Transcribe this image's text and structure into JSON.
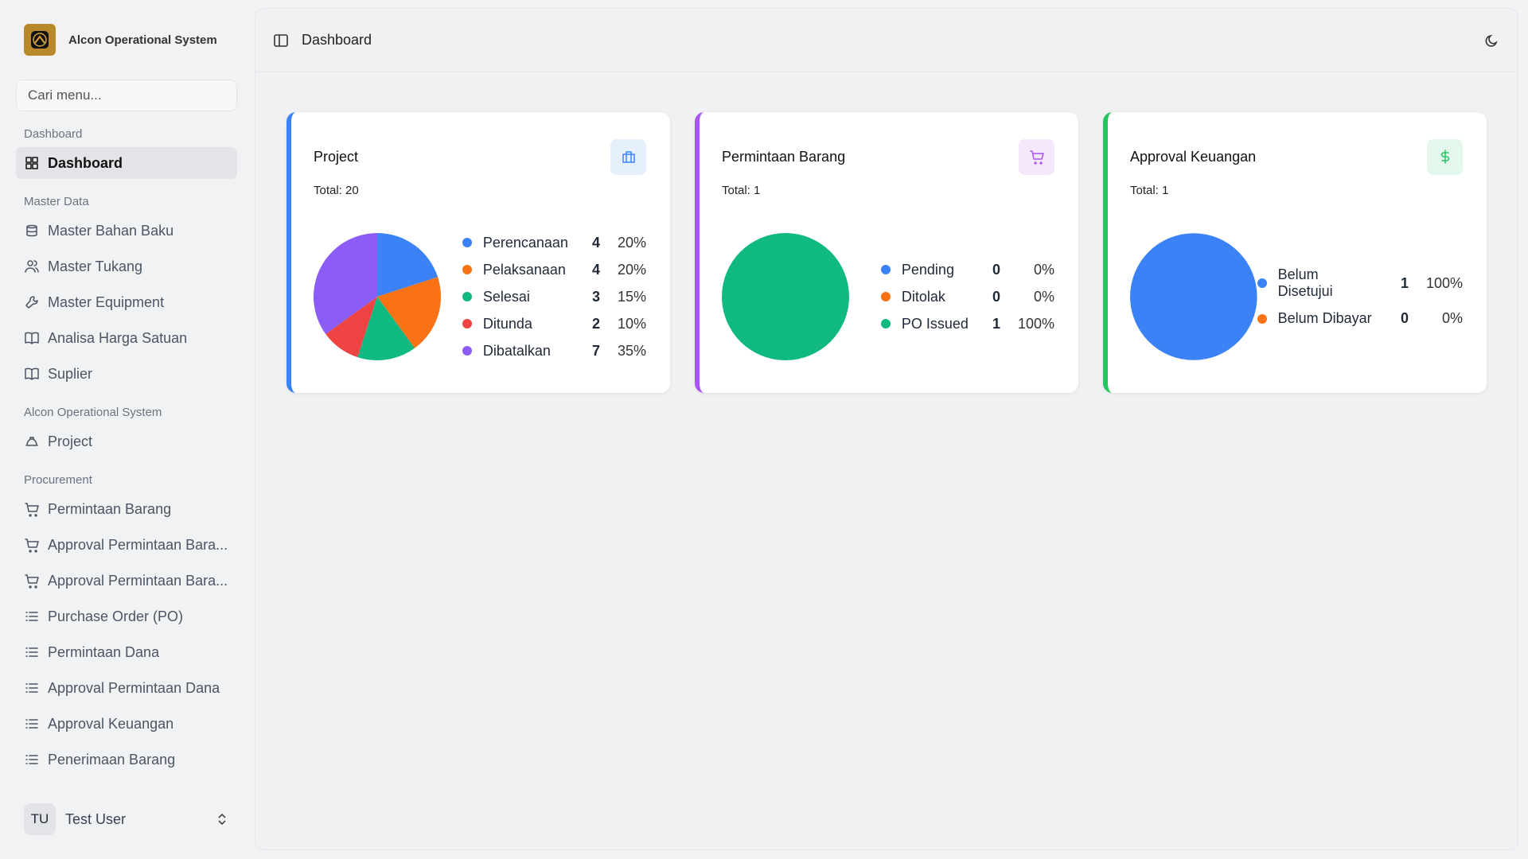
{
  "sidebar": {
    "app_name": "Alcon Operational System",
    "search_placeholder": "Cari menu...",
    "sections": [
      {
        "label": "Dashboard",
        "items": [
          "Dashboard"
        ]
      },
      {
        "label": "Master Data",
        "items": [
          "Master Bahan Baku",
          "Master Tukang",
          "Master Equipment",
          "Analisa Harga Satuan",
          "Suplier"
        ]
      },
      {
        "label": "Alcon Operational System",
        "items": [
          "Project"
        ]
      },
      {
        "label": "Procurement",
        "items": [
          "Permintaan Barang",
          "Approval Permintaan Bara...",
          "Approval Permintaan Bara...",
          "Purchase Order (PO)",
          "Permintaan Dana",
          "Approval Permintaan Dana",
          "Approval Keuangan",
          "Penerimaan Barang"
        ]
      }
    ],
    "user": {
      "initials": "TU",
      "name": "Test User"
    }
  },
  "header": {
    "title": "Dashboard"
  },
  "cards": [
    {
      "title": "Project",
      "total_label": "Total:",
      "total": 20,
      "accent": "#3b82f6",
      "chart": {
        "type": "pie",
        "categories": [
          "Perencanaan",
          "Pelaksanaan",
          "Selesai",
          "Ditunda",
          "Dibatalkan"
        ],
        "values": [
          4,
          4,
          3,
          2,
          7
        ],
        "percents": [
          20,
          20,
          15,
          10,
          35
        ],
        "percent_labels": [
          "20%",
          "20%",
          "15%",
          "10%",
          "35%"
        ],
        "colors": [
          "#3b82f6",
          "#f97316",
          "#10b981",
          "#ef4444",
          "#8b5cf6"
        ]
      }
    },
    {
      "title": "Permintaan Barang",
      "total_label": "Total:",
      "total": 1,
      "accent": "#a855f7",
      "chart": {
        "type": "pie",
        "categories": [
          "Pending",
          "Ditolak",
          "PO Issued"
        ],
        "values": [
          0,
          0,
          1
        ],
        "percents": [
          0,
          0,
          100
        ],
        "percent_labels": [
          "0%",
          "0%",
          "100%"
        ],
        "colors": [
          "#3b82f6",
          "#f97316",
          "#10b981"
        ]
      }
    },
    {
      "title": "Approval Keuangan",
      "total_label": "Total:",
      "total": 1,
      "accent": "#22c55e",
      "chart": {
        "type": "pie",
        "categories": [
          "Belum Disetujui",
          "Belum Dibayar"
        ],
        "values": [
          1,
          0
        ],
        "percents": [
          100,
          0
        ],
        "percent_labels": [
          "100%",
          "0%"
        ],
        "colors": [
          "#3b82f6",
          "#f97316"
        ]
      }
    }
  ]
}
